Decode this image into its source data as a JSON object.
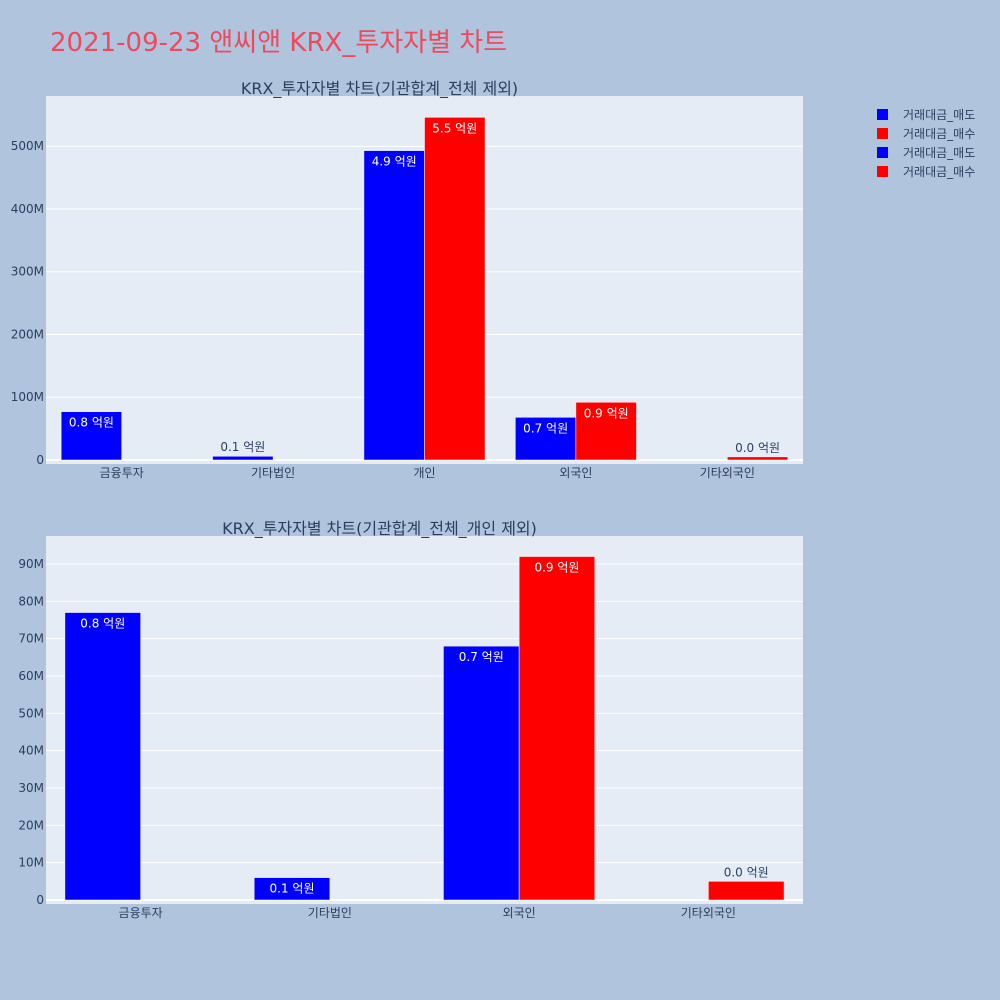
{
  "title": "2021-09-23 앤씨앤 KRX_투자자별 차트",
  "colors": {
    "sell": "#0000ff",
    "buy": "#ff0000"
  },
  "legend": [
    {
      "name": "거래대금_매도",
      "color": "#0000ff"
    },
    {
      "name": "거래대금_매수",
      "color": "#ff0000"
    },
    {
      "name": "거래대금_매도",
      "color": "#0000ff"
    },
    {
      "name": "거래대금_매수",
      "color": "#ff0000"
    }
  ],
  "chart_data": [
    {
      "type": "bar",
      "title": "KRX_투자자별 차트(기관합계_전체 제외)",
      "categories": [
        "금융투자",
        "기타법인",
        "개인",
        "외국인",
        "기타외국인"
      ],
      "ylim": [
        0,
        580000000
      ],
      "yticks": [
        0,
        100000000,
        200000000,
        300000000,
        400000000,
        500000000
      ],
      "ytick_labels": [
        "0",
        "100M",
        "200M",
        "300M",
        "400M",
        "500M"
      ],
      "series": [
        {
          "name": "거래대금_매도",
          "color": "#0000ff",
          "values": [
            77000000,
            6000000,
            493000000,
            68000000,
            0
          ],
          "labels": [
            "0.8 억원",
            "0.1 억원",
            "4.9 억원",
            "0.7 억원",
            ""
          ]
        },
        {
          "name": "거래대금_매수",
          "color": "#ff0000",
          "values": [
            0,
            0,
            546000000,
            92000000,
            5000000
          ],
          "labels": [
            "",
            "",
            "5.5 억원",
            "0.9 억원",
            "0.0 억원"
          ]
        }
      ]
    },
    {
      "type": "bar",
      "title": "KRX_투자자별 차트(기관합계_전체_개인 제외)",
      "categories": [
        "금융투자",
        "기타법인",
        "외국인",
        "기타외국인"
      ],
      "ylim": [
        0,
        97500000
      ],
      "yticks": [
        0,
        10000000,
        20000000,
        30000000,
        40000000,
        50000000,
        60000000,
        70000000,
        80000000,
        90000000
      ],
      "ytick_labels": [
        "0",
        "10M",
        "20M",
        "30M",
        "40M",
        "50M",
        "60M",
        "70M",
        "80M",
        "90M"
      ],
      "series": [
        {
          "name": "거래대금_매도",
          "color": "#0000ff",
          "values": [
            77000000,
            6000000,
            68000000,
            0
          ],
          "labels": [
            "0.8 억원",
            "0.1 억원",
            "0.7 억원",
            ""
          ]
        },
        {
          "name": "거래대금_매수",
          "color": "#ff0000",
          "values": [
            0,
            0,
            92000000,
            5000000
          ],
          "labels": [
            "",
            "",
            "0.9 억원",
            "0.0 억원"
          ]
        }
      ]
    }
  ]
}
